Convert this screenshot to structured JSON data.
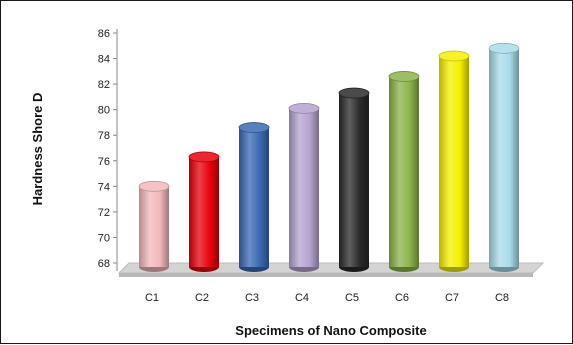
{
  "chart_data": {
    "type": "bar",
    "categories": [
      "C1",
      "C2",
      "C3",
      "C4",
      "C5",
      "C6",
      "C7",
      "C8"
    ],
    "values": [
      74.0,
      76.3,
      78.6,
      80.1,
      81.3,
      82.6,
      84.2,
      84.8
    ],
    "colors": [
      "#f2b8bb",
      "#e8000c",
      "#3a69b4",
      "#b4a3cf",
      "#2a2a2a",
      "#8cb34a",
      "#f5f000",
      "#a9dbe8"
    ],
    "title": "",
    "xlabel": "Specimens of Nano Composite",
    "ylabel": "Hardness Shore D",
    "ylim": [
      68,
      86
    ],
    "yticks": [
      68,
      70,
      72,
      74,
      76,
      78,
      80,
      82,
      84,
      86
    ],
    "grid": false,
    "legend": "none"
  }
}
